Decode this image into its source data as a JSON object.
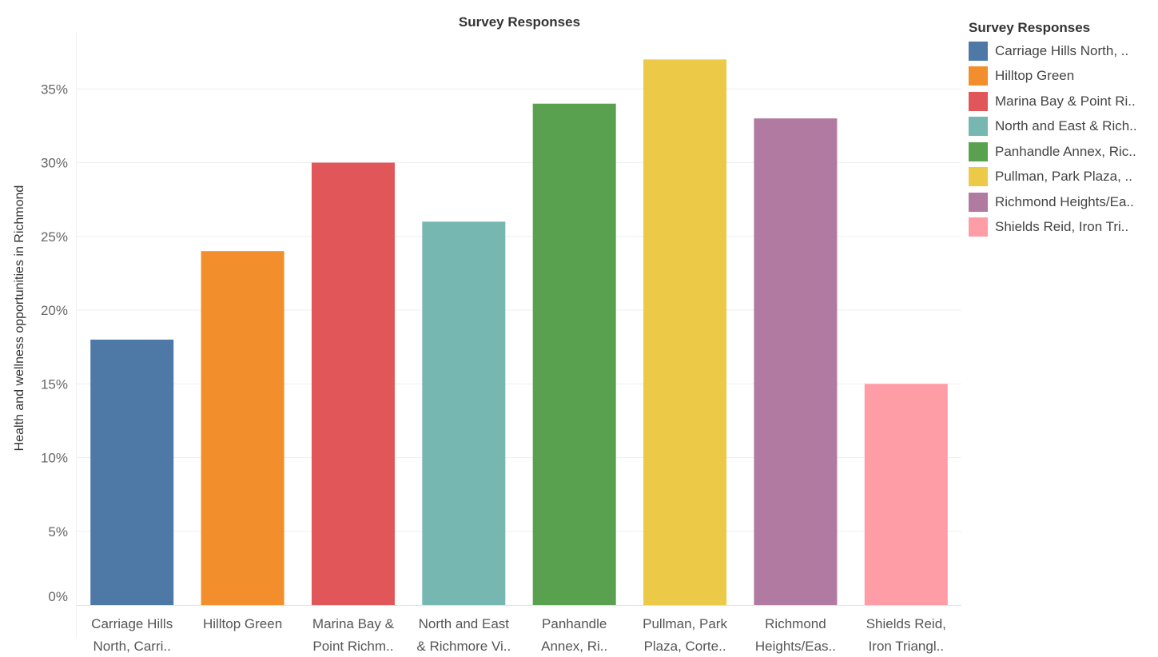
{
  "chart_data": {
    "type": "bar",
    "title": "Survey Responses",
    "ylabel": "Health and wellness opportunities in Richmond",
    "xlabel": "",
    "ylim": [
      0,
      38.5
    ],
    "yticks": [
      0,
      5,
      10,
      15,
      20,
      25,
      30,
      35
    ],
    "ytick_labels": [
      "0%",
      "5%",
      "10%",
      "15%",
      "20%",
      "25%",
      "30%",
      "35%"
    ],
    "grid": true,
    "legend_position": "right",
    "legend_title": "Survey Responses",
    "categories": [
      [
        "Carriage Hills",
        "North, Carri.."
      ],
      [
        "Hilltop Green"
      ],
      [
        "Marina Bay &",
        "Point Richm.."
      ],
      [
        "North and East",
        "& Richmore Vi.."
      ],
      [
        "Panhandle",
        "Annex, Ri.."
      ],
      [
        "Pullman, Park",
        "Plaza, Corte.."
      ],
      [
        "Richmond",
        "Heights/Eas.."
      ],
      [
        "Shields Reid,",
        "Iron Triangl.."
      ]
    ],
    "legend_labels": [
      "Carriage Hills North, ..",
      "Hilltop Green",
      "Marina Bay & Point Ri..",
      "North and East & Rich..",
      "Panhandle Annex, Ric..",
      "Pullman, Park Plaza, ..",
      "Richmond Heights/Ea..",
      "Shields Reid, Iron Tri.."
    ],
    "values": [
      18,
      24,
      30,
      26,
      34,
      37,
      33,
      15
    ],
    "colors": [
      "#4e79a7",
      "#f28e2b",
      "#e15759",
      "#76b7b2",
      "#59a14f",
      "#edc948",
      "#b07aa1",
      "#ff9da7"
    ]
  }
}
